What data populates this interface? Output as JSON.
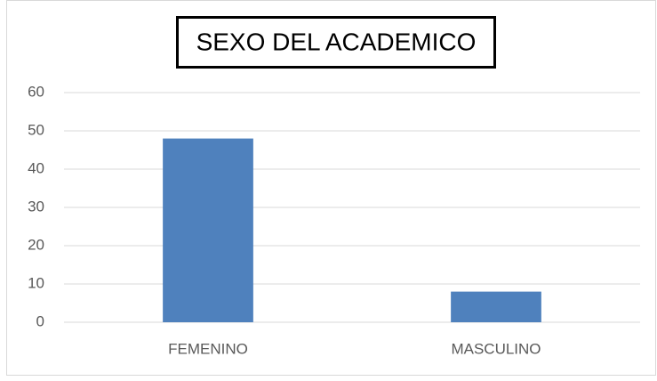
{
  "chart_data": {
    "type": "bar",
    "title": "SEXO DEL ACADEMICO",
    "categories": [
      "FEMENINO",
      "MASCULINO"
    ],
    "values": [
      48,
      8
    ],
    "color": "#4f81bd",
    "ylim": [
      0,
      60
    ],
    "yticks": [
      0,
      10,
      20,
      30,
      40,
      50,
      60
    ],
    "grid": true
  }
}
